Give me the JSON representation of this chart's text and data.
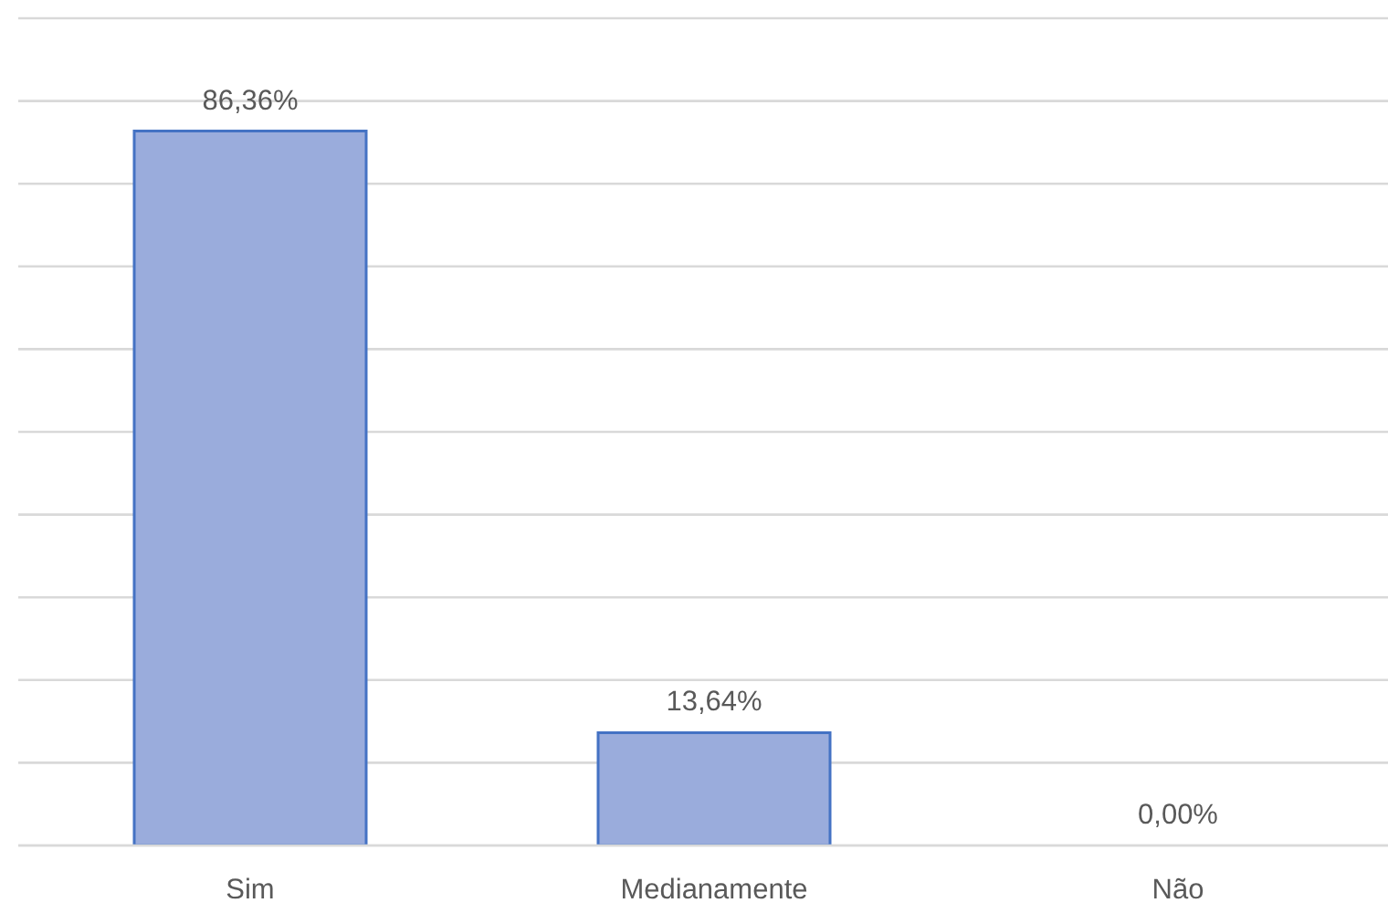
{
  "chart_data": {
    "type": "bar",
    "categories": [
      "Sim",
      "Medianamente",
      "Não"
    ],
    "values": [
      86.36,
      13.64,
      0
    ],
    "value_labels": [
      "86,36%",
      "13,64%",
      "0,00%"
    ],
    "color": "#9aacdc",
    "ylim": [
      0,
      100
    ],
    "yticks": [
      {
        "value": 0,
        "label": null
      },
      {
        "value": 10,
        "label": null
      },
      {
        "value": 20,
        "label": null
      },
      {
        "value": 30,
        "label": null
      },
      {
        "value": 40,
        "label": null
      },
      {
        "value": 50,
        "label": null
      },
      {
        "value": 60,
        "label": null
      },
      {
        "value": 70,
        "label": null
      },
      {
        "value": 80,
        "label": null
      },
      {
        "value": 90,
        "label": null
      },
      {
        "value": 100,
        "label": null
      }
    ],
    "grid": "y",
    "tick_labels": "x"
  }
}
